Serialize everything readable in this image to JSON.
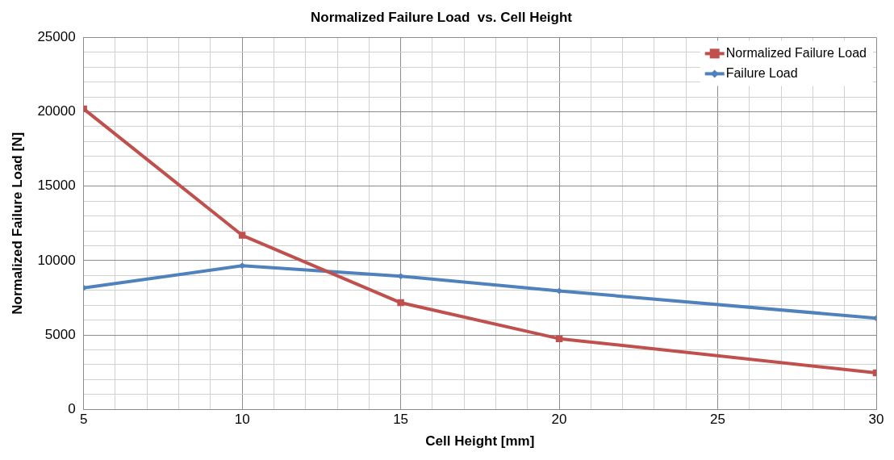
{
  "chart_data": {
    "type": "line",
    "title": "Normalized Failure Load  vs. Cell Height",
    "xlabel": "Cell Height [mm]",
    "ylabel": "Normalized Failure Load [N]",
    "x": [
      5,
      10,
      15,
      20,
      30
    ],
    "series": [
      {
        "name": "Normalized Failure Load",
        "color": "#c0504d",
        "marker": "square",
        "values": [
          20200,
          11700,
          7170,
          4750,
          2450
        ]
      },
      {
        "name": "Failure Load",
        "color": "#4f81bd",
        "marker": "diamond",
        "values": [
          8160,
          9650,
          8950,
          7960,
          6130
        ]
      }
    ],
    "xlim": [
      5,
      30
    ],
    "xticks": [
      5,
      {
        "value": 6,
        "label": null
      },
      {
        "value": 7,
        "label": null
      },
      {
        "value": 8,
        "label": null
      },
      {
        "value": 9,
        "label": null
      },
      10,
      {
        "value": 11,
        "label": null
      },
      {
        "value": 12,
        "label": null
      },
      {
        "value": 13,
        "label": null
      },
      {
        "value": 14,
        "label": null
      },
      15,
      {
        "value": 16,
        "label": null
      },
      {
        "value": 17,
        "label": null
      },
      {
        "value": 18,
        "label": null
      },
      {
        "value": 19,
        "label": null
      },
      20,
      {
        "value": 21,
        "label": null
      },
      {
        "value": 22,
        "label": null
      },
      {
        "value": 23,
        "label": null
      },
      {
        "value": 24,
        "label": null
      },
      25,
      {
        "value": 26,
        "label": null
      },
      {
        "value": 27,
        "label": null
      },
      {
        "value": 28,
        "label": null
      },
      {
        "value": 29,
        "label": null
      },
      30
    ],
    "ylim": [
      0,
      25000
    ],
    "yticks": [
      0,
      {
        "value": 1000,
        "label": null
      },
      {
        "value": 2000,
        "label": null
      },
      {
        "value": 3000,
        "label": null
      },
      {
        "value": 4000,
        "label": null
      },
      5000,
      {
        "value": 6000,
        "label": null
      },
      {
        "value": 7000,
        "label": null
      },
      {
        "value": 8000,
        "label": null
      },
      {
        "value": 9000,
        "label": null
      },
      10000,
      {
        "value": 11000,
        "label": null
      },
      {
        "value": 12000,
        "label": null
      },
      {
        "value": 13000,
        "label": null
      },
      {
        "value": 14000,
        "label": null
      },
      15000,
      {
        "value": 16000,
        "label": null
      },
      {
        "value": 17000,
        "label": null
      },
      {
        "value": 18000,
        "label": null
      },
      {
        "value": 19000,
        "label": null
      },
      20000,
      {
        "value": 21000,
        "label": null
      },
      {
        "value": 22000,
        "label": null
      },
      {
        "value": 23000,
        "label": null
      },
      {
        "value": 24000,
        "label": null
      },
      25000
    ],
    "grid": true,
    "legend": "top right",
    "line_style": "solid"
  }
}
